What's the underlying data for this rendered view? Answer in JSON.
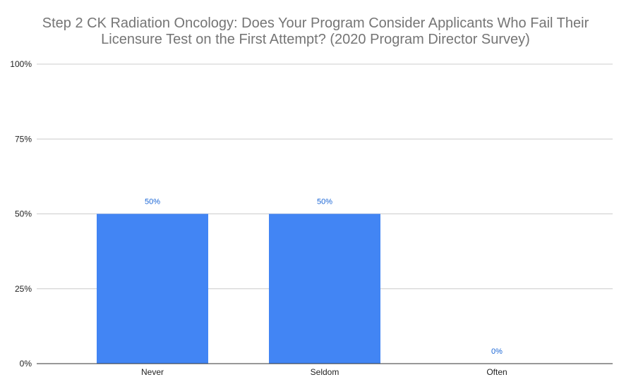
{
  "chart_data": {
    "type": "bar",
    "title_lines": [
      "Step 2 CK Radiation Oncology: Does Your Program Consider Applicants Who Fail Their",
      "Licensure Test on the First Attempt? (2020 Program Director Survey)"
    ],
    "categories": [
      "Never",
      "Seldom",
      "Often"
    ],
    "values": [
      50,
      50,
      0
    ],
    "data_labels": [
      "50%",
      "50%",
      "0%"
    ],
    "yticks": [
      0,
      25,
      50,
      75,
      100
    ],
    "ytick_labels": [
      "0%",
      "25%",
      "50%",
      "75%",
      "100%"
    ],
    "ylim": [
      0,
      100
    ],
    "xlabel": "",
    "ylabel": "",
    "grid": true,
    "legend": "none",
    "colors": {
      "bar": "#4285f4",
      "data_label": "#1a66d6",
      "grid": "#cccccc",
      "axis": "#333333",
      "title": "#757575"
    }
  }
}
